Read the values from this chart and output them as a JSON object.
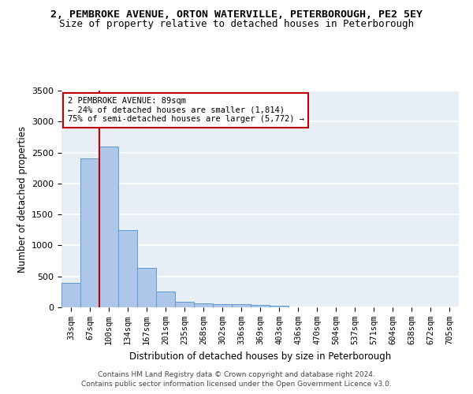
{
  "title_line1": "2, PEMBROKE AVENUE, ORTON WATERVILLE, PETERBOROUGH, PE2 5EY",
  "title_line2": "Size of property relative to detached houses in Peterborough",
  "xlabel": "Distribution of detached houses by size in Peterborough",
  "ylabel": "Number of detached properties",
  "categories": [
    "33sqm",
    "67sqm",
    "100sqm",
    "134sqm",
    "167sqm",
    "201sqm",
    "235sqm",
    "268sqm",
    "302sqm",
    "336sqm",
    "369sqm",
    "403sqm",
    "436sqm",
    "470sqm",
    "504sqm",
    "537sqm",
    "571sqm",
    "604sqm",
    "638sqm",
    "672sqm",
    "705sqm"
  ],
  "values": [
    395,
    2400,
    2600,
    1250,
    640,
    260,
    95,
    60,
    55,
    50,
    35,
    30,
    0,
    0,
    0,
    0,
    0,
    0,
    0,
    0,
    0
  ],
  "bar_color": "#aec6e8",
  "bar_edge_color": "#5b9bd5",
  "highlight_color": "#c00000",
  "ylim": [
    0,
    3500
  ],
  "yticks": [
    0,
    500,
    1000,
    1500,
    2000,
    2500,
    3000,
    3500
  ],
  "annotation_text": "2 PEMBROKE AVENUE: 89sqm\n← 24% of detached houses are smaller (1,814)\n75% of semi-detached houses are larger (5,772) →",
  "vline_x": 1.5,
  "footer_line1": "Contains HM Land Registry data © Crown copyright and database right 2024.",
  "footer_line2": "Contains public sector information licensed under the Open Government Licence v3.0.",
  "background_color": "#e8eef5",
  "grid_color": "#ffffff"
}
